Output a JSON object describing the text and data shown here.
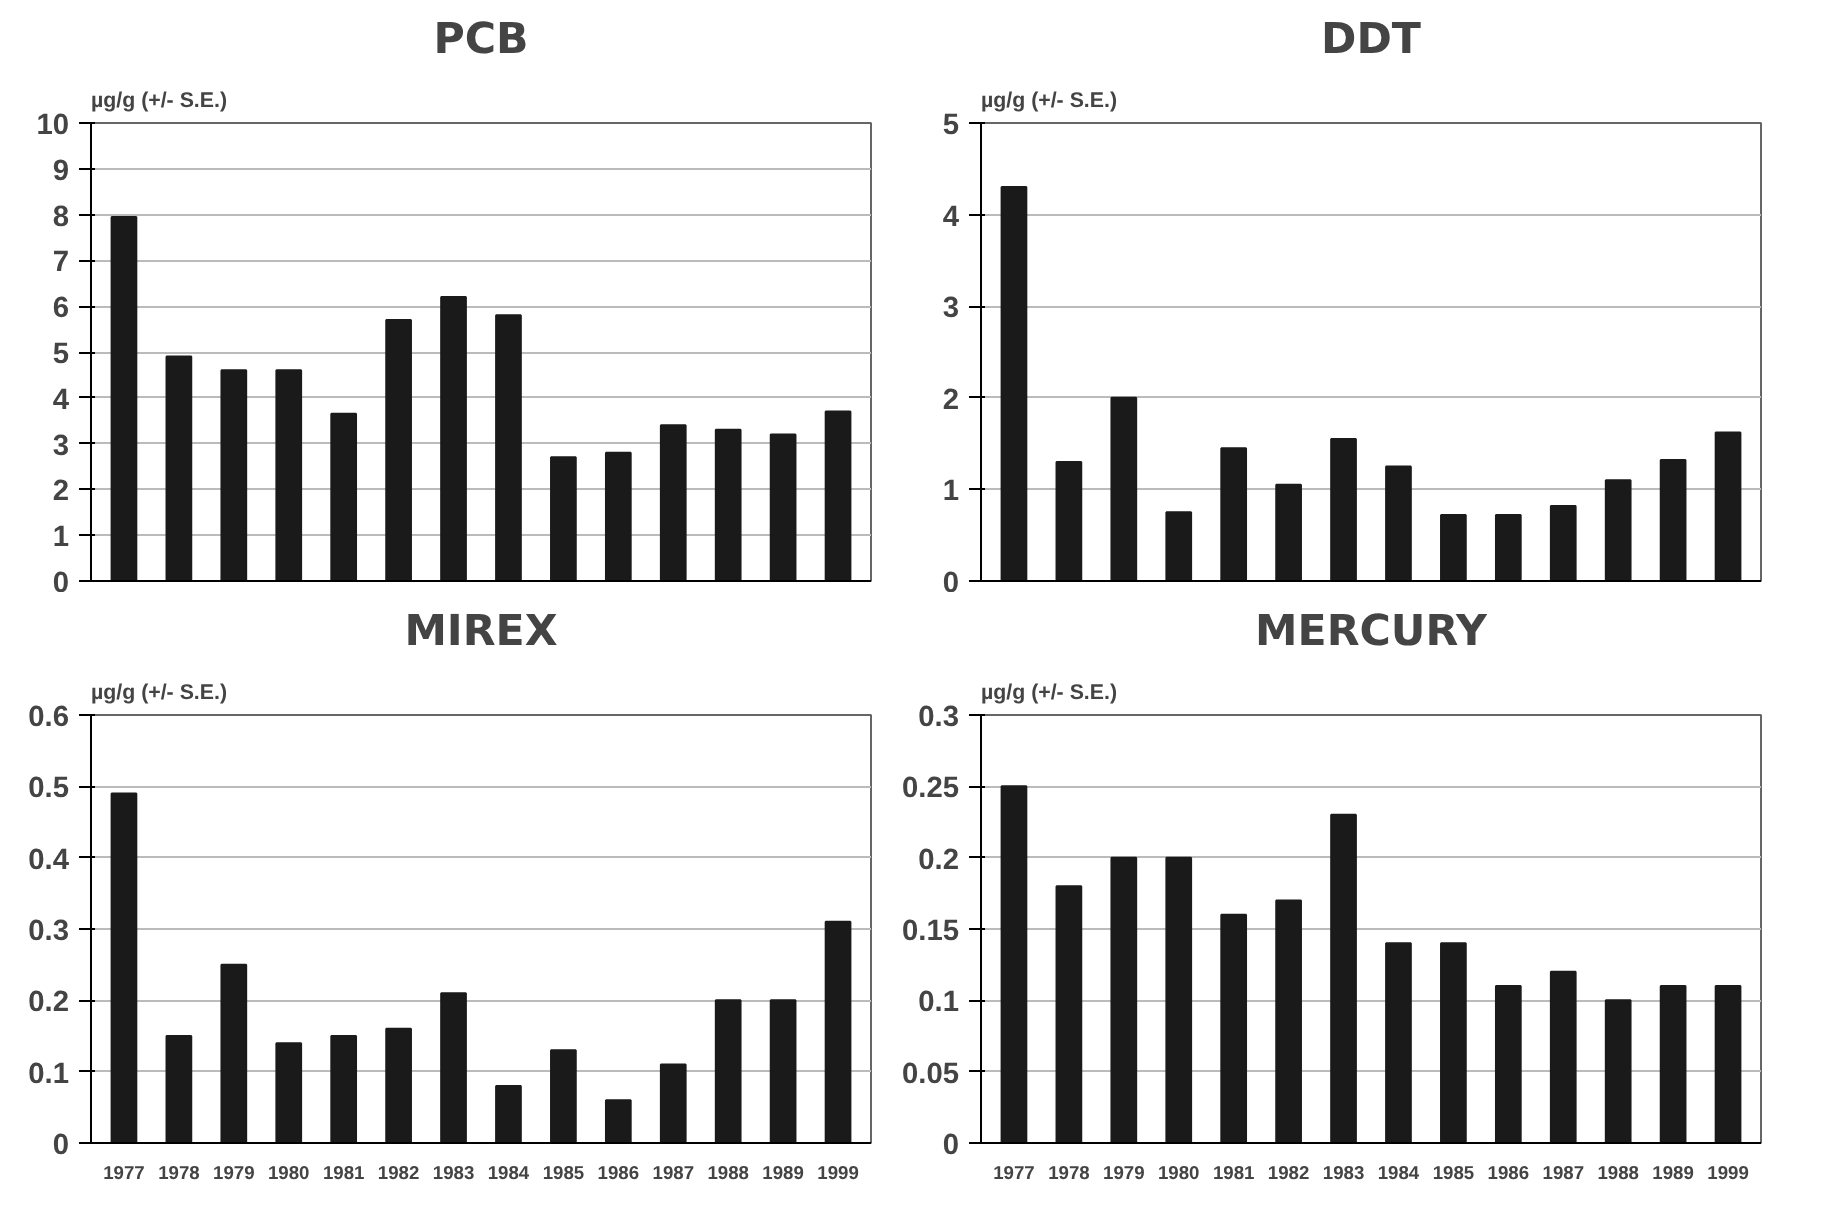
{
  "chart_data": [
    {
      "type": "bar",
      "title": "PCB",
      "ylabel": "µg/g (+/- S.E.)",
      "categories": [
        "1977",
        "1978",
        "1979",
        "1980",
        "1981",
        "1982",
        "1983",
        "1984",
        "1985",
        "1986",
        "1987",
        "1988",
        "1989",
        "1999"
      ],
      "values": [
        7.95,
        4.9,
        4.6,
        4.6,
        3.65,
        5.7,
        6.2,
        5.8,
        2.7,
        2.8,
        3.4,
        3.3,
        3.2,
        3.7
      ],
      "color": "#1a1a1a",
      "ylim": [
        0,
        10
      ],
      "yticks": [
        0,
        1,
        2,
        3,
        4,
        5,
        6,
        7,
        8,
        9,
        10
      ],
      "grid": "y",
      "tick_labels": "y"
    },
    {
      "type": "bar",
      "title": "DDT",
      "ylabel": "µg/g (+/- S.E.)",
      "categories": [
        "1977",
        "1978",
        "1979",
        "1980",
        "1981",
        "1982",
        "1983",
        "1984",
        "1985",
        "1986",
        "1987",
        "1988",
        "1989",
        "1999"
      ],
      "values": [
        4.3,
        1.3,
        2.0,
        0.75,
        1.45,
        1.05,
        1.55,
        1.25,
        0.72,
        0.72,
        0.82,
        1.1,
        1.32,
        1.62
      ],
      "color": "#1a1a1a",
      "ylim": [
        0,
        5
      ],
      "yticks": [
        0,
        1,
        2,
        3,
        4,
        5
      ],
      "grid": "y",
      "tick_labels": "y"
    },
    {
      "type": "bar",
      "title": "MIREX",
      "ylabel": "µg/g (+/- S.E.)",
      "categories": [
        "1977",
        "1978",
        "1979",
        "1980",
        "1981",
        "1982",
        "1983",
        "1984",
        "1985",
        "1986",
        "1987",
        "1988",
        "1989",
        "1999"
      ],
      "values": [
        0.49,
        0.15,
        0.25,
        0.14,
        0.15,
        0.16,
        0.21,
        0.08,
        0.13,
        0.06,
        0.11,
        0.2,
        0.2,
        0.31
      ],
      "color": "#1a1a1a",
      "ylim": [
        0,
        0.6
      ],
      "yticks": [
        0,
        0.1,
        0.2,
        0.3,
        0.4,
        0.5,
        0.6
      ],
      "grid": "y"
    },
    {
      "type": "bar",
      "title": "MERCURY",
      "ylabel": "µg/g (+/- S.E.)",
      "categories": [
        "1977",
        "1978",
        "1979",
        "1980",
        "1981",
        "1982",
        "1983",
        "1984",
        "1985",
        "1986",
        "1987",
        "1988",
        "1989",
        "1999"
      ],
      "values": [
        0.25,
        0.18,
        0.2,
        0.2,
        0.16,
        0.17,
        0.23,
        0.14,
        0.14,
        0.11,
        0.12,
        0.1,
        0.11,
        0.11
      ],
      "color": "#1a1a1a",
      "ylim": [
        0,
        0.3
      ],
      "yticks": [
        0,
        0.05,
        0.1,
        0.15,
        0.2,
        0.25,
        0.3
      ],
      "grid": "y"
    }
  ]
}
